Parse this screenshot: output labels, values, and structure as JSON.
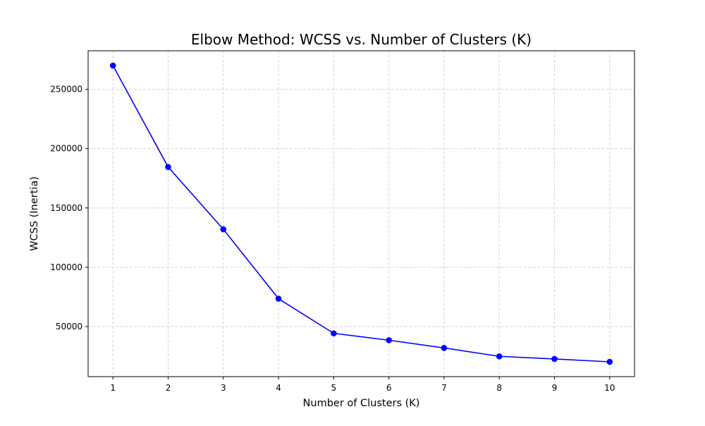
{
  "chart_data": {
    "type": "line",
    "title": "Elbow Method: WCSS vs. Number of Clusters (K)",
    "xlabel": "Number of Clusters (K)",
    "ylabel": "WCSS (Inertia)",
    "x": [
      1,
      2,
      3,
      4,
      5,
      6,
      7,
      8,
      9,
      10
    ],
    "series": [
      {
        "values": [
          270000,
          184500,
          132000,
          73500,
          44300,
          38500,
          32000,
          24900,
          22700,
          20300
        ],
        "color": "#0000ff",
        "marker": "circle"
      }
    ],
    "x_ticks": [
      1,
      2,
      3,
      4,
      5,
      6,
      7,
      8,
      9,
      10
    ],
    "x_tick_labels": [
      "1",
      "2",
      "3",
      "4",
      "5",
      "6",
      "7",
      "8",
      "9",
      "10"
    ],
    "y_ticks": [
      50000,
      100000,
      150000,
      200000,
      250000
    ],
    "y_tick_labels": [
      "50000",
      "100000",
      "150000",
      "200000",
      "250000"
    ],
    "xlim": [
      0.55,
      10.45
    ],
    "ylim": [
      7815,
      282485
    ],
    "grid": true,
    "grid_style": "dashed",
    "grid_color": "#d3d3d3",
    "legend": false
  }
}
